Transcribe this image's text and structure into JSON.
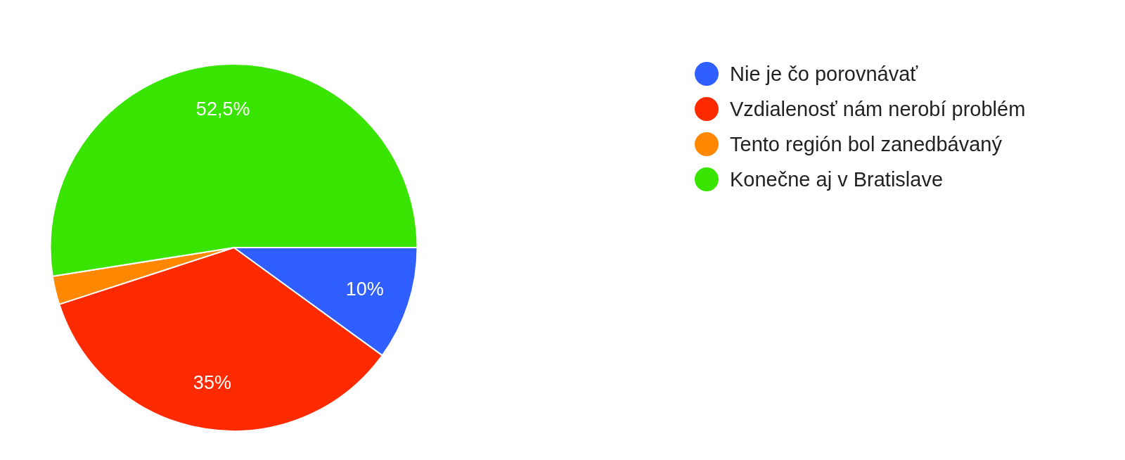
{
  "chart_data": {
    "type": "pie",
    "categories": [
      "Nie je čo porovnávať",
      "Vzdialenosť nám nerobí problém",
      "Tento región bol zanedbávaný",
      "Konečne aj v Bratislave"
    ],
    "values": [
      10,
      35,
      2.5,
      52.5
    ],
    "colors": [
      "#2f5fff",
      "#ff2a00",
      "#ff8800",
      "#38e400"
    ],
    "value_labels": [
      "10%",
      "35%",
      null,
      "52,5%"
    ],
    "legend": "top right"
  }
}
